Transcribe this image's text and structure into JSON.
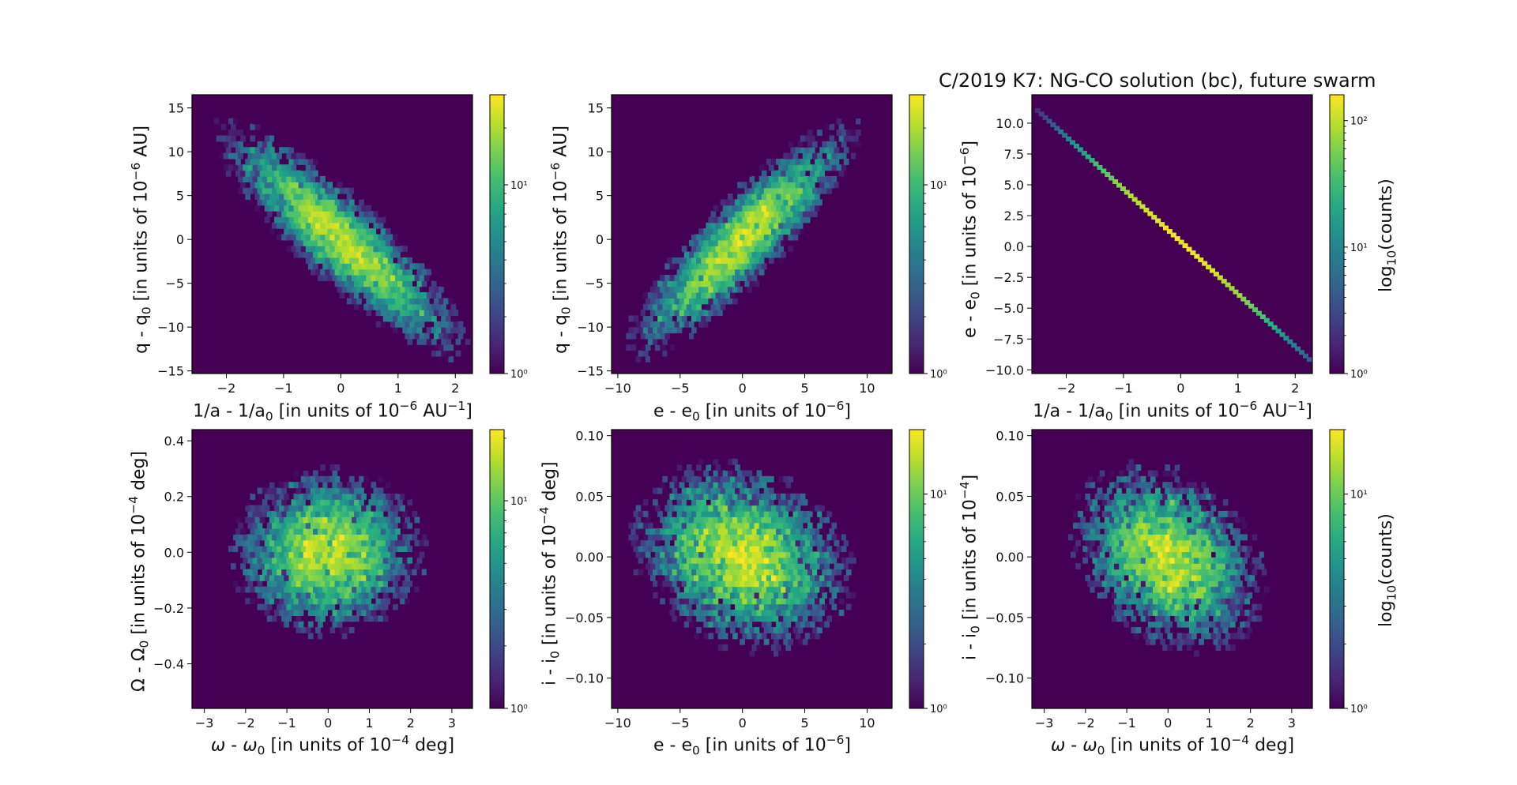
{
  "figure_title": "C/2019 K7: NG-CO solution (bc), future swarm",
  "chart_data": [
    {
      "type": "heatmap",
      "xlabel": "1/a - 1/a0 [in units of 10^-6 AU^-1]",
      "ylabel": "q - q0 [in units of 10^-6 AU]",
      "xlim": [
        -2.6,
        2.3
      ],
      "ylim": [
        -15.3,
        16.5
      ],
      "xticks": [
        "−2",
        "−1",
        "0",
        "1",
        "2"
      ],
      "xtick_values": [
        -2,
        -1,
        0,
        1,
        2
      ],
      "yticks": [
        "−15",
        "−10",
        "−5",
        "0",
        "5",
        "10",
        "15"
      ],
      "ytick_values": [
        -15,
        -10,
        -5,
        0,
        5,
        10,
        15
      ],
      "colorbar": {
        "scale": "log",
        "ticks": [
          "10⁰",
          "10¹"
        ],
        "tick_values": [
          1,
          10
        ],
        "max": 30,
        "label": ""
      },
      "distribution": {
        "center": [
          0,
          0
        ],
        "sigma": [
          0.85,
          5.2
        ],
        "correlation": -0.88
      }
    },
    {
      "type": "heatmap",
      "xlabel": "e - e0 [in units of 10^-6]",
      "ylabel": "q - q0 [in units of 10^-6 AU]",
      "xlim": [
        -10.5,
        12
      ],
      "ylim": [
        -15.3,
        16.5
      ],
      "xticks": [
        "−10",
        "−5",
        "0",
        "5",
        "10"
      ],
      "xtick_values": [
        -10,
        -5,
        0,
        5,
        10
      ],
      "yticks": [
        "−15",
        "−10",
        "−5",
        "0",
        "5",
        "10",
        "15"
      ],
      "ytick_values": [
        -15,
        -10,
        -5,
        0,
        5,
        10,
        15
      ],
      "colorbar": {
        "scale": "log",
        "ticks": [
          "10⁰",
          "10¹"
        ],
        "tick_values": [
          1,
          10
        ],
        "max": 30,
        "label": ""
      },
      "distribution": {
        "center": [
          0,
          0
        ],
        "sigma": [
          3.6,
          5.2
        ],
        "correlation": 0.88
      }
    },
    {
      "type": "heatmap",
      "xlabel": "1/a - 1/a0 [in units of 10^-6 AU^-1]",
      "ylabel": "e - e0 [in units of 10^-6]",
      "xlim": [
        -2.6,
        2.3
      ],
      "ylim": [
        -10.3,
        12.3
      ],
      "xticks": [
        "−2",
        "−1",
        "0",
        "1",
        "2"
      ],
      "xtick_values": [
        -2,
        -1,
        0,
        1,
        2
      ],
      "yticks": [
        "−10.0",
        "−7.5",
        "−5.0",
        "−2.5",
        "0.0",
        "2.5",
        "5.0",
        "7.5",
        "10.0"
      ],
      "ytick_values": [
        -10,
        -7.5,
        -5,
        -2.5,
        0,
        2.5,
        5,
        7.5,
        10
      ],
      "colorbar": {
        "scale": "log",
        "ticks": [
          "10⁰",
          "10¹",
          "10²"
        ],
        "tick_values": [
          1,
          10,
          100
        ],
        "max": 160,
        "label": "log10(counts)"
      },
      "distribution": {
        "line": {
          "slope": -4.25,
          "intercept": 0.4,
          "x_range": [
            -2.5,
            2.25
          ]
        }
      }
    },
    {
      "type": "heatmap",
      "xlabel": "ω - ω0 [in units of 10^-4 deg]",
      "ylabel": "Ω - Ω0 [in units of 10^-4 deg]",
      "xlim": [
        -3.3,
        3.5
      ],
      "ylim": [
        -0.56,
        0.44
      ],
      "xticks": [
        "−3",
        "−2",
        "−1",
        "0",
        "1",
        "2",
        "3"
      ],
      "xtick_values": [
        -3,
        -2,
        -1,
        0,
        1,
        2,
        3
      ],
      "yticks": [
        "−0.4",
        "−0.2",
        "0.0",
        "0.2",
        "0.4"
      ],
      "ytick_values": [
        -0.4,
        -0.2,
        0,
        0.2,
        0.4
      ],
      "colorbar": {
        "scale": "log",
        "ticks": [
          "10⁰",
          "10¹"
        ],
        "tick_values": [
          1,
          10
        ],
        "max": 22,
        "label": ""
      },
      "distribution": {
        "center": [
          0,
          0
        ],
        "sigma": [
          0.95,
          0.12
        ],
        "correlation": 0.0
      }
    },
    {
      "type": "heatmap",
      "xlabel": "e - e0 [in units of 10^-6]",
      "ylabel": "i - i0 [in units of 10^-4 deg]",
      "xlim": [
        -10.5,
        12
      ],
      "ylim": [
        -0.125,
        0.105
      ],
      "xticks": [
        "−10",
        "−5",
        "0",
        "5",
        "10"
      ],
      "xtick_values": [
        -10,
        -5,
        0,
        5,
        10
      ],
      "yticks": [
        "−0.10",
        "−0.05",
        "0.00",
        "0.05",
        "0.10"
      ],
      "ytick_values": [
        -0.1,
        -0.05,
        0,
        0.05,
        0.1
      ],
      "colorbar": {
        "scale": "log",
        "ticks": [
          "10⁰",
          "10¹"
        ],
        "tick_values": [
          1,
          10
        ],
        "max": 20,
        "label": ""
      },
      "distribution": {
        "center": [
          0,
          0
        ],
        "sigma": [
          3.6,
          0.032
        ],
        "correlation": -0.2
      }
    },
    {
      "type": "heatmap",
      "xlabel": "ω - ω0 [in units of 10^-4 deg]",
      "ylabel": "i - i0 [in units of 10^-4]",
      "xlim": [
        -3.3,
        3.5
      ],
      "ylim": [
        -0.125,
        0.105
      ],
      "xticks": [
        "−3",
        "−2",
        "−1",
        "0",
        "1",
        "2",
        "3"
      ],
      "xtick_values": [
        -3,
        -2,
        -1,
        0,
        1,
        2,
        3
      ],
      "yticks": [
        "−0.10",
        "−0.05",
        "0.00",
        "0.05",
        "0.10"
      ],
      "ytick_values": [
        -0.1,
        -0.05,
        0,
        0.05,
        0.1
      ],
      "colorbar": {
        "scale": "log",
        "ticks": [
          "10⁰",
          "10¹"
        ],
        "tick_values": [
          1,
          10
        ],
        "max": 20,
        "label": "log10(counts)"
      },
      "distribution": {
        "center": [
          0,
          0
        ],
        "sigma": [
          0.95,
          0.032
        ],
        "correlation": -0.3
      }
    }
  ]
}
